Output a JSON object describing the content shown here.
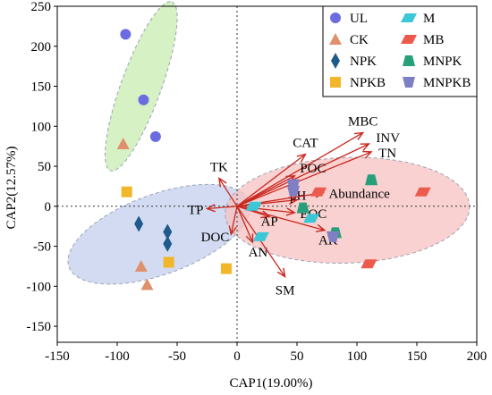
{
  "chart_data": {
    "type": "scatter",
    "title": "",
    "xlabel": "CAP1(19.00%)",
    "ylabel": "CAP2(12.57%)",
    "xlim": [
      -150,
      200
    ],
    "ylim": [
      -170,
      250
    ],
    "xticks": [
      -150,
      -100,
      -50,
      0,
      50,
      100,
      150,
      200
    ],
    "yticks": [
      -150,
      -100,
      -50,
      0,
      50,
      100,
      150,
      200,
      250
    ],
    "reference_lines": {
      "x": 0,
      "y": 0,
      "style": "dotted"
    },
    "grid": false,
    "legend_position": "top-right",
    "colors": {
      "UL": "#6b6ce0",
      "CK": "#e0906c",
      "NPK": "#1f5a8c",
      "NPKB": "#f2b62a",
      "M": "#3cc7d6",
      "MB": "#ec5a4e",
      "MNPK": "#27a07a",
      "MNPKB": "#7f7fc4",
      "arrow": "#c8281f"
    },
    "legend": {
      "col1": [
        "UL",
        "CK",
        "NPK",
        "NPKB"
      ],
      "col2": [
        "M",
        "MB",
        "MNPK",
        "MNPKB"
      ]
    },
    "series": [
      {
        "name": "UL",
        "shape": "circle",
        "points": [
          [
            -93,
            215
          ],
          [
            -78,
            133
          ],
          [
            -68,
            87
          ]
        ]
      },
      {
        "name": "CK",
        "shape": "triangle",
        "points": [
          [
            -95,
            78
          ],
          [
            -80,
            -75
          ],
          [
            -75,
            -98
          ]
        ]
      },
      {
        "name": "NPK",
        "shape": "diamond",
        "points": [
          [
            -82,
            -22
          ],
          [
            -58,
            -32
          ],
          [
            -58,
            -47
          ]
        ]
      },
      {
        "name": "NPKB",
        "shape": "square",
        "points": [
          [
            -92,
            18
          ],
          [
            -57,
            -70
          ],
          [
            -9,
            -78
          ]
        ]
      },
      {
        "name": "M",
        "shape": "parallelogram",
        "points": [
          [
            14,
            0
          ],
          [
            20,
            -38
          ],
          [
            62,
            -15
          ]
        ]
      },
      {
        "name": "MB",
        "shape": "parallelogram",
        "points": [
          [
            68,
            18
          ],
          [
            110,
            -72
          ],
          [
            155,
            18
          ]
        ]
      },
      {
        "name": "MNPK",
        "shape": "trapezoid",
        "points": [
          [
            55,
            -2
          ],
          [
            82,
            -33
          ],
          [
            112,
            33
          ]
        ]
      },
      {
        "name": "MNPKB",
        "shape": "inv-trapezoid",
        "points": [
          [
            47,
            27
          ],
          [
            47,
            19
          ],
          [
            80,
            -38
          ]
        ]
      }
    ],
    "ellipses": [
      {
        "group": "UL",
        "color": "#c8ecb0",
        "cx": -80,
        "cy": 150,
        "rx_data": 75,
        "ry_data": 25,
        "angle_deg": -70
      },
      {
        "group": "CK/NPK/NPKB",
        "color": "#c4cfee",
        "cx": -65,
        "cy": -35,
        "rx_data": 80,
        "ry_data": 50,
        "angle_deg": -20
      },
      {
        "group": "M/MB/MNPK/MNPKB",
        "color": "#f7c2c0",
        "cx": 92,
        "cy": -5,
        "rx_data": 102,
        "ry_data": 66,
        "angle_deg": -2
      }
    ],
    "vectors": [
      {
        "name": "MBC",
        "x": 105,
        "y": 92
      },
      {
        "name": "INV",
        "x": 110,
        "y": 78
      },
      {
        "name": "TN",
        "x": 112,
        "y": 68
      },
      {
        "name": "CAT",
        "x": 57,
        "y": 65
      },
      {
        "name": "TK",
        "x": -15,
        "y": 35
      },
      {
        "name": "TP",
        "x": -25,
        "y": -3
      },
      {
        "name": "POC",
        "x": 48,
        "y": 38
      },
      {
        "name": "pH",
        "x": 50,
        "y": 8
      },
      {
        "name": "Abundance",
        "x": 72,
        "y": 17
      },
      {
        "name": "EOC",
        "x": 48,
        "y": -8
      },
      {
        "name": "AP",
        "x": 27,
        "y": -13
      },
      {
        "name": "DOC",
        "x": -5,
        "y": -35
      },
      {
        "name": "AN",
        "x": 13,
        "y": -45
      },
      {
        "name": "AK",
        "x": 73,
        "y": -30
      },
      {
        "name": "SM",
        "x": 40,
        "y": -88
      }
    ]
  }
}
